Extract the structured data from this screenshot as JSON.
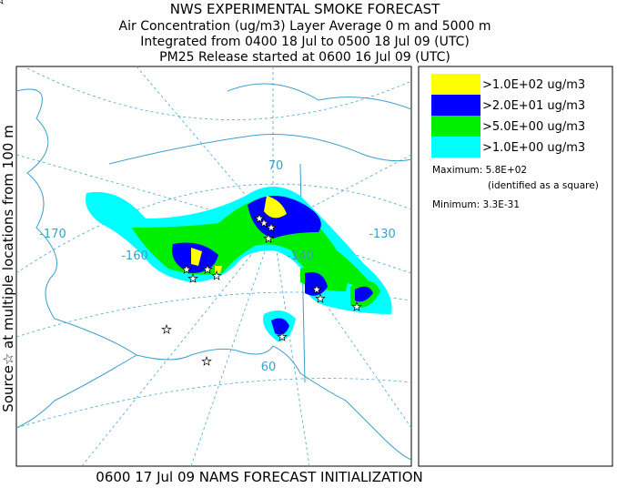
{
  "header": {
    "title": "NWS EXPERIMENTAL SMOKE FORECAST",
    "lines": [
      "Air Concentration (ug/m3) Layer Average    0 m and  5000 m",
      "Integrated from 0400 18 Jul to 0500 18 Jul 09 (UTC)",
      "PM25 Release started at 0600 16 Jul 09 (UTC)"
    ]
  },
  "side_label": "Source☆    at multiple locations    from   100 m",
  "map": {
    "labels": [
      "-170",
      "-160",
      "-140",
      "-130",
      "70",
      "60"
    ]
  },
  "legend": {
    "items": [
      {
        "label": ">1.0E+02 ug/m3",
        "color": "#ffff00"
      },
      {
        "label": ">2.0E+01 ug/m3",
        "color": "#0000ff"
      },
      {
        "label": ">5.0E+00 ug/m3",
        "color": "#00ee00"
      },
      {
        "label": ">1.0E+00 ug/m3",
        "color": "#00ffff"
      }
    ],
    "maximum": "Maximum: 5.8E+02",
    "identified": "(identified as a square)",
    "minimum": "Minimum: 3.3E-31"
  },
  "footer": "0600 17 Jul 09 NAMS FORECAST INITIALIZATION"
}
